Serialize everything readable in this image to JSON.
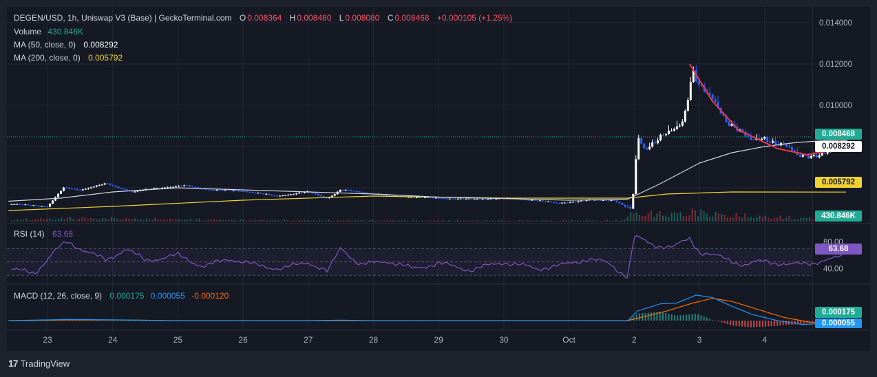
{
  "header": {
    "symbol_line": "DEGEN/USD, 1h, Uniswap V3 (Base) | GeckoTerminal.com",
    "o_label": "O",
    "o_value": "0.008364",
    "h_label": "H",
    "h_value": "0.008480",
    "l_label": "L",
    "l_value": "0.008080",
    "c_label": "C",
    "c_value": "0.008468",
    "change": "+0.000105 (+1.25%)"
  },
  "legend": {
    "volume_label": "Volume",
    "volume_value": "430.846K",
    "ma50_label": "MA (50, close, 0)",
    "ma50_value": "0.008292",
    "ma200_label": "MA (200, close, 0)",
    "ma200_value": "0.005792",
    "rsi_label": "RSI (14)",
    "rsi_value": "63.68",
    "macd_label": "MACD (12, 26, close, 9)",
    "macd_hist": "0.000175",
    "macd_line": "0.000055",
    "macd_signal": "-0.000120"
  },
  "badges": {
    "price": "0.008468",
    "ma50": "0.008292",
    "ma200": "0.005792",
    "volume": "430.846K",
    "rsi": "63.68",
    "macd_hist": "0.000175",
    "macd_line": "0.000055"
  },
  "branding": {
    "logo_text": "TradingView"
  },
  "colors": {
    "bg": "#151924",
    "up": "#ffffff",
    "down": "#2962ff",
    "ma50": "#d1d4dc",
    "ma200": "#f0d131",
    "rsi": "#7e57c2",
    "macd": "#2196f3",
    "signal": "#ff6d00",
    "hist_up": "#26a69a",
    "hist_down": "#ef5350",
    "curve": "#f23645",
    "price_badge": "#22ab94"
  },
  "chart_data": [
    {
      "type": "candlestick",
      "title": "DEGEN/USD, 1h, Uniswap V3 (Base) | GeckoTerminal.com",
      "x_ticks": [
        "23",
        "24",
        "25",
        "26",
        "27",
        "28",
        "29",
        "30",
        "Oct",
        "2",
        "3",
        "4"
      ],
      "y_ticks": [
        "0.014000",
        "0.012000",
        "0.010000"
      ],
      "ylim": [
        0.0047,
        0.0147
      ],
      "last": {
        "open": 0.008364,
        "high": 0.00848,
        "low": 0.00808,
        "close": 0.008468
      },
      "price_path": [
        {
          "day": 22.5,
          "price": 0.0052
        },
        {
          "day": 23.0,
          "price": 0.0051
        },
        {
          "day": 23.25,
          "price": 0.006
        },
        {
          "day": 23.5,
          "price": 0.0059
        },
        {
          "day": 23.9,
          "price": 0.0062
        },
        {
          "day": 24.3,
          "price": 0.0058
        },
        {
          "day": 24.7,
          "price": 0.006
        },
        {
          "day": 25.1,
          "price": 0.0061
        },
        {
          "day": 25.5,
          "price": 0.0059
        },
        {
          "day": 26.0,
          "price": 0.00585
        },
        {
          "day": 26.5,
          "price": 0.0056
        },
        {
          "day": 27.0,
          "price": 0.0058
        },
        {
          "day": 27.3,
          "price": 0.0055
        },
        {
          "day": 27.5,
          "price": 0.0059
        },
        {
          "day": 27.8,
          "price": 0.0058
        },
        {
          "day": 28.3,
          "price": 0.0056
        },
        {
          "day": 29.0,
          "price": 0.0055
        },
        {
          "day": 29.5,
          "price": 0.00545
        },
        {
          "day": 30.0,
          "price": 0.0055
        },
        {
          "day": 30.5,
          "price": 0.0054
        },
        {
          "day": 30.8,
          "price": 0.00525
        },
        {
          "day": 31.3,
          "price": 0.0054
        },
        {
          "day": 31.7,
          "price": 0.0054
        },
        {
          "day": 31.95,
          "price": 0.0049
        },
        {
          "day": 32.0,
          "price": 0.006
        },
        {
          "day": 32.05,
          "price": 0.0085
        },
        {
          "day": 32.15,
          "price": 0.0079
        },
        {
          "day": 32.4,
          "price": 0.0085
        },
        {
          "day": 32.6,
          "price": 0.0087
        },
        {
          "day": 32.75,
          "price": 0.0092
        },
        {
          "day": 32.9,
          "price": 0.0118
        },
        {
          "day": 33.0,
          "price": 0.011
        },
        {
          "day": 33.2,
          "price": 0.0102
        },
        {
          "day": 33.4,
          "price": 0.0093
        },
        {
          "day": 33.6,
          "price": 0.0089
        },
        {
          "day": 33.8,
          "price": 0.0082
        },
        {
          "day": 34.0,
          "price": 0.0084
        },
        {
          "day": 34.3,
          "price": 0.0081
        },
        {
          "day": 34.5,
          "price": 0.0075
        },
        {
          "day": 34.7,
          "price": 0.0076
        },
        {
          "day": 35.0,
          "price": 0.0077
        },
        {
          "day": 35.2,
          "price": 0.008
        },
        {
          "day": 35.25,
          "price": 0.008468
        }
      ],
      "ma50_path": [
        {
          "day": 22.4,
          "value": 0.00535
        },
        {
          "day": 23.2,
          "value": 0.0055
        },
        {
          "day": 24.0,
          "value": 0.0058
        },
        {
          "day": 25.0,
          "value": 0.006
        },
        {
          "day": 26.0,
          "value": 0.0059
        },
        {
          "day": 27.0,
          "value": 0.0058
        },
        {
          "day": 28.0,
          "value": 0.0057
        },
        {
          "day": 29.0,
          "value": 0.00555
        },
        {
          "day": 30.0,
          "value": 0.00548
        },
        {
          "day": 31.0,
          "value": 0.0054
        },
        {
          "day": 31.9,
          "value": 0.00545
        },
        {
          "day": 32.4,
          "value": 0.0062
        },
        {
          "day": 33.0,
          "value": 0.0072
        },
        {
          "day": 33.5,
          "value": 0.0077
        },
        {
          "day": 34.0,
          "value": 0.008
        },
        {
          "day": 34.5,
          "value": 0.0082
        },
        {
          "day": 35.0,
          "value": 0.0083
        },
        {
          "day": 35.25,
          "value": 0.008292
        }
      ],
      "ma200_path": [
        {
          "day": 22.4,
          "value": 0.0049
        },
        {
          "day": 24.0,
          "value": 0.0051
        },
        {
          "day": 26.0,
          "value": 0.0054
        },
        {
          "day": 28.0,
          "value": 0.0056
        },
        {
          "day": 30.0,
          "value": 0.0055
        },
        {
          "day": 31.9,
          "value": 0.0055
        },
        {
          "day": 32.5,
          "value": 0.0057
        },
        {
          "day": 33.5,
          "value": 0.0058
        },
        {
          "day": 35.25,
          "value": 0.005792
        }
      ],
      "annotation_curve": [
        {
          "day": 32.85,
          "value": 0.012
        },
        {
          "day": 33.2,
          "value": 0.0102
        },
        {
          "day": 33.6,
          "value": 0.0088
        },
        {
          "day": 34.2,
          "value": 0.0079
        },
        {
          "day": 34.65,
          "value": 0.0076
        },
        {
          "day": 35.0,
          "value": 0.0078
        },
        {
          "day": 35.25,
          "value": 0.0086
        }
      ]
    },
    {
      "type": "bar",
      "title": "Volume",
      "last_value": "430.846K",
      "profile": [
        {
          "day": 22.4,
          "level": 0.15
        },
        {
          "day": 23.3,
          "level": 0.35
        },
        {
          "day": 24.0,
          "level": 0.3
        },
        {
          "day": 26.0,
          "level": 0.15
        },
        {
          "day": 28.0,
          "level": 0.12
        },
        {
          "day": 30.0,
          "level": 0.1
        },
        {
          "day": 31.8,
          "level": 0.12
        },
        {
          "day": 32.0,
          "level": 0.9
        },
        {
          "day": 32.5,
          "level": 0.7
        },
        {
          "day": 32.9,
          "level": 1.0
        },
        {
          "day": 33.5,
          "level": 0.6
        },
        {
          "day": 34.5,
          "level": 0.35
        },
        {
          "day": 35.25,
          "level": 0.35
        }
      ]
    },
    {
      "type": "line",
      "title": "RSI (14)",
      "y_ticks": [
        "80.00",
        "40.00"
      ],
      "band": [
        30,
        70
      ],
      "ylim": [
        20,
        100
      ],
      "last_value": 63.68,
      "path": [
        {
          "day": 22.4,
          "value": 40
        },
        {
          "day": 22.8,
          "value": 33
        },
        {
          "day": 23.1,
          "value": 65
        },
        {
          "day": 23.3,
          "value": 80
        },
        {
          "day": 23.6,
          "value": 66
        },
        {
          "day": 23.9,
          "value": 52
        },
        {
          "day": 24.2,
          "value": 70
        },
        {
          "day": 24.5,
          "value": 52
        },
        {
          "day": 25.0,
          "value": 60
        },
        {
          "day": 25.4,
          "value": 43
        },
        {
          "day": 25.8,
          "value": 55
        },
        {
          "day": 26.2,
          "value": 45
        },
        {
          "day": 26.6,
          "value": 40
        },
        {
          "day": 27.0,
          "value": 50
        },
        {
          "day": 27.3,
          "value": 35
        },
        {
          "day": 27.5,
          "value": 72
        },
        {
          "day": 27.8,
          "value": 45
        },
        {
          "day": 28.2,
          "value": 52
        },
        {
          "day": 28.6,
          "value": 40
        },
        {
          "day": 29.0,
          "value": 48
        },
        {
          "day": 29.5,
          "value": 38
        },
        {
          "day": 30.0,
          "value": 50
        },
        {
          "day": 30.5,
          "value": 40
        },
        {
          "day": 30.9,
          "value": 45
        },
        {
          "day": 31.3,
          "value": 55
        },
        {
          "day": 31.6,
          "value": 48
        },
        {
          "day": 31.9,
          "value": 28
        },
        {
          "day": 32.0,
          "value": 88
        },
        {
          "day": 32.3,
          "value": 75
        },
        {
          "day": 32.6,
          "value": 72
        },
        {
          "day": 32.85,
          "value": 85
        },
        {
          "day": 33.0,
          "value": 65
        },
        {
          "day": 33.4,
          "value": 55
        },
        {
          "day": 33.7,
          "value": 45
        },
        {
          "day": 34.0,
          "value": 52
        },
        {
          "day": 34.4,
          "value": 45
        },
        {
          "day": 34.8,
          "value": 50
        },
        {
          "day": 35.1,
          "value": 55
        },
        {
          "day": 35.25,
          "value": 63.68
        }
      ]
    },
    {
      "type": "line",
      "title": "MACD (12, 26, close, 9)",
      "last": {
        "histogram": 0.000175,
        "macd": 5.5e-05,
        "signal": -0.00012
      },
      "macd_path": [
        {
          "day": 22.4,
          "value": 0
        },
        {
          "day": 23.3,
          "value": 7e-05
        },
        {
          "day": 24.0,
          "value": 5e-05
        },
        {
          "day": 25.0,
          "value": 0
        },
        {
          "day": 27.0,
          "value": 0
        },
        {
          "day": 27.5,
          "value": 3e-05
        },
        {
          "day": 28.0,
          "value": 0
        },
        {
          "day": 31.9,
          "value": 0
        },
        {
          "day": 32.05,
          "value": 0.0006
        },
        {
          "day": 32.4,
          "value": 0.00105
        },
        {
          "day": 32.65,
          "value": 0.0011
        },
        {
          "day": 32.95,
          "value": 0.0016
        },
        {
          "day": 33.2,
          "value": 0.00145
        },
        {
          "day": 33.5,
          "value": 0.0009
        },
        {
          "day": 33.8,
          "value": 0.0004
        },
        {
          "day": 34.2,
          "value": 0
        },
        {
          "day": 34.6,
          "value": -0.00025
        },
        {
          "day": 35.0,
          "value": -0.00012
        },
        {
          "day": 35.25,
          "value": 5.5e-05
        }
      ],
      "signal_path": [
        {
          "day": 22.4,
          "value": 0
        },
        {
          "day": 23.3,
          "value": 4e-05
        },
        {
          "day": 24.2,
          "value": 4e-05
        },
        {
          "day": 25.0,
          "value": 0
        },
        {
          "day": 31.9,
          "value": 0
        },
        {
          "day": 32.1,
          "value": 0.0002
        },
        {
          "day": 32.5,
          "value": 0.0006
        },
        {
          "day": 32.9,
          "value": 0.0011
        },
        {
          "day": 33.2,
          "value": 0.0014
        },
        {
          "day": 33.5,
          "value": 0.0012
        },
        {
          "day": 33.9,
          "value": 0.0007
        },
        {
          "day": 34.3,
          "value": 0.0002
        },
        {
          "day": 34.7,
          "value": -0.0001
        },
        {
          "day": 35.0,
          "value": -0.00022
        },
        {
          "day": 35.25,
          "value": -0.00012
        }
      ]
    }
  ]
}
